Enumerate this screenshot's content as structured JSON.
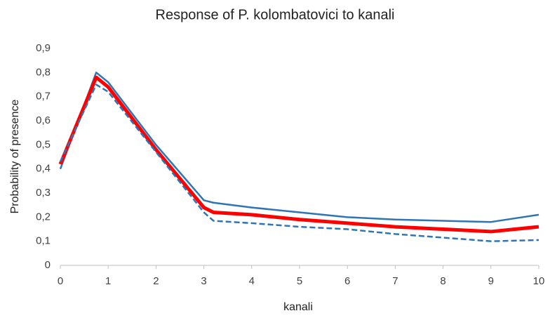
{
  "chart_data": {
    "type": "line",
    "title": "Response of P. kolombatovici to kanali",
    "x_label": "kanali",
    "y_label": "Probability of presence",
    "x": [
      0,
      0.75,
      1,
      2,
      3,
      3.2,
      4,
      5,
      6,
      7,
      8,
      9,
      10
    ],
    "series": [
      {
        "color": "#2e75b6",
        "values": [
          0.4,
          0.8,
          0.76,
          0.5,
          0.27,
          0.26,
          0.24,
          0.22,
          0.2,
          0.19,
          0.185,
          0.18,
          0.21
        ]
      },
      {
        "color": "#ff0000",
        "values": [
          0.42,
          0.78,
          0.74,
          0.48,
          0.24,
          0.22,
          0.21,
          0.19,
          0.175,
          0.16,
          0.15,
          0.14,
          0.16
        ]
      },
      {
        "color": "#2e75b6",
        "line_style": "dashed",
        "values": [
          0.43,
          0.75,
          0.72,
          0.47,
          0.22,
          0.185,
          0.175,
          0.16,
          0.15,
          0.13,
          0.115,
          0.1,
          0.105
        ]
      }
    ],
    "xlim": [
      0,
      10
    ],
    "xticks": [
      0,
      1,
      2,
      3,
      4,
      5,
      6,
      7,
      8,
      9,
      10
    ],
    "ylim": [
      0,
      0.9
    ],
    "yticks": [
      0,
      {
        "value": 0.1,
        "label": "0,1"
      },
      {
        "value": 0.2,
        "label": "0,2"
      },
      {
        "value": 0.3,
        "label": "0,3"
      },
      {
        "value": 0.4,
        "label": "0,4"
      },
      {
        "value": 0.5,
        "label": "0,5"
      },
      {
        "value": 0.6,
        "label": "0,6"
      },
      {
        "value": 0.7,
        "label": "0,7"
      },
      {
        "value": 0.8,
        "label": "0,8"
      },
      {
        "value": 0.9,
        "label": "0,9"
      }
    ],
    "grid": false
  }
}
